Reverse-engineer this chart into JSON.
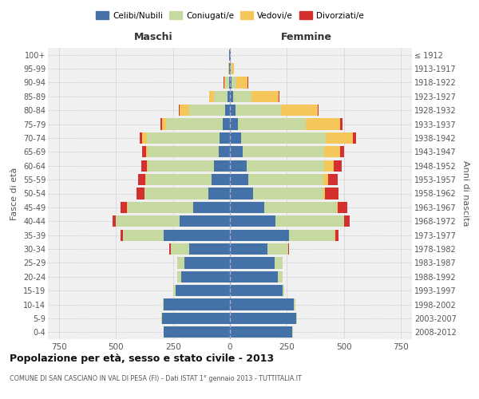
{
  "age_groups": [
    "0-4",
    "5-9",
    "10-14",
    "15-19",
    "20-24",
    "25-29",
    "30-34",
    "35-39",
    "40-44",
    "45-49",
    "50-54",
    "55-59",
    "60-64",
    "65-69",
    "70-74",
    "75-79",
    "80-84",
    "85-89",
    "90-94",
    "95-99",
    "100+"
  ],
  "birth_years": [
    "2008-2012",
    "2003-2007",
    "1998-2002",
    "1993-1997",
    "1988-1992",
    "1983-1987",
    "1978-1982",
    "1973-1977",
    "1968-1972",
    "1963-1967",
    "1958-1962",
    "1953-1957",
    "1948-1952",
    "1943-1947",
    "1938-1942",
    "1933-1937",
    "1928-1932",
    "1923-1927",
    "1918-1922",
    "1913-1917",
    "≤ 1912"
  ],
  "males": {
    "celibi": [
      290,
      300,
      290,
      240,
      215,
      200,
      180,
      290,
      220,
      160,
      95,
      80,
      70,
      50,
      45,
      30,
      20,
      10,
      5,
      2,
      2
    ],
    "coniugati": [
      2,
      3,
      5,
      8,
      15,
      30,
      80,
      180,
      280,
      290,
      280,
      290,
      290,
      310,
      320,
      250,
      160,
      60,
      15,
      3,
      1
    ],
    "vedovi": [
      0,
      0,
      0,
      0,
      0,
      0,
      1,
      1,
      2,
      2,
      2,
      3,
      5,
      10,
      20,
      20,
      40,
      20,
      5,
      1,
      0
    ],
    "divorziati": [
      0,
      0,
      0,
      0,
      1,
      2,
      5,
      10,
      15,
      30,
      35,
      30,
      25,
      15,
      10,
      5,
      3,
      2,
      2,
      0,
      0
    ]
  },
  "females": {
    "nubili": [
      275,
      290,
      280,
      230,
      210,
      195,
      165,
      260,
      200,
      150,
      100,
      80,
      75,
      55,
      50,
      35,
      25,
      15,
      8,
      3,
      2
    ],
    "coniugate": [
      2,
      4,
      6,
      10,
      20,
      35,
      90,
      200,
      300,
      320,
      310,
      330,
      340,
      360,
      370,
      300,
      200,
      80,
      20,
      5,
      1
    ],
    "vedove": [
      0,
      0,
      0,
      0,
      0,
      0,
      1,
      2,
      3,
      5,
      8,
      20,
      40,
      70,
      120,
      150,
      160,
      120,
      50,
      10,
      2
    ],
    "divorziate": [
      0,
      0,
      0,
      0,
      1,
      2,
      5,
      15,
      25,
      40,
      60,
      45,
      35,
      15,
      15,
      8,
      4,
      3,
      3,
      0,
      0
    ]
  },
  "color_celibi": "#4472a8",
  "color_coniugati": "#c5d9a0",
  "color_vedovi": "#f5c65a",
  "color_divorziati": "#d43030",
  "title": "Popolazione per età, sesso e stato civile - 2013",
  "subtitle": "COMUNE DI SAN CASCIANO IN VAL DI PESA (FI) - Dati ISTAT 1° gennaio 2013 - TUTTITALIA.IT",
  "xlabel_left": "Maschi",
  "xlabel_right": "Femmine",
  "ylabel_left": "Fasce di età",
  "ylabel_right": "Anni di nascita",
  "xlim": 800,
  "bg_color": "#f0f0f0",
  "grid_color": "#cccccc"
}
